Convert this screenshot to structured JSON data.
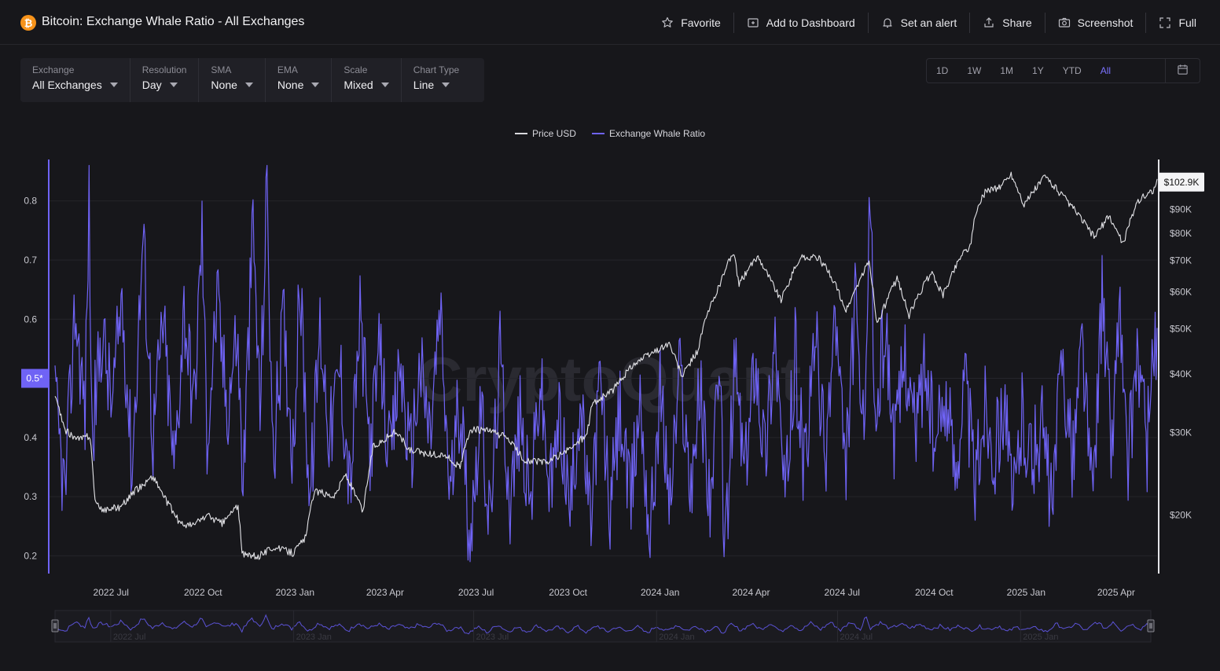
{
  "header": {
    "logo_glyph": "₿",
    "title": "Bitcoin: Exchange Whale Ratio - All Exchanges",
    "actions": [
      {
        "label": "Favorite",
        "icon": "star-icon"
      },
      {
        "label": "Add to Dashboard",
        "icon": "dashboard-add-icon"
      },
      {
        "label": "Set an alert",
        "icon": "bell-icon"
      },
      {
        "label": "Share",
        "icon": "share-icon"
      },
      {
        "label": "Screenshot",
        "icon": "camera-icon"
      },
      {
        "label": "Full",
        "icon": "fullscreen-icon"
      }
    ]
  },
  "filters": [
    {
      "label": "Exchange",
      "value": "All Exchanges"
    },
    {
      "label": "Resolution",
      "value": "Day"
    },
    {
      "label": "SMA",
      "value": "None"
    },
    {
      "label": "EMA",
      "value": "None"
    },
    {
      "label": "Scale",
      "value": "Mixed"
    },
    {
      "label": "Chart Type",
      "value": "Line"
    }
  ],
  "ranges": {
    "items": [
      "1D",
      "1W",
      "1M",
      "1Y",
      "YTD",
      "All"
    ],
    "active": "All",
    "calendar_icon": "calendar-icon"
  },
  "legend": [
    {
      "label": "Price USD",
      "color": "#d9d9de"
    },
    {
      "label": "Exchange Whale Ratio",
      "color": "#6f63f5"
    }
  ],
  "watermark": "CryptoQuant",
  "colors": {
    "background": "#17171b",
    "ratio": "#6f63f5",
    "price": "#e4e4e8",
    "grid": "#25252b",
    "accent": "#7b72ff",
    "bitcoin": "#f7931a"
  },
  "chart_data": {
    "type": "line",
    "title": "Bitcoin: Exchange Whale Ratio - All Exchanges",
    "x_range": [
      "2022-05-06",
      "2025-05-12"
    ],
    "x_ticks": [
      "2022 Jul",
      "2022 Oct",
      "2023 Jan",
      "2023 Apr",
      "2023 Jul",
      "2023 Oct",
      "2024 Jan",
      "2024 Apr",
      "2024 Jul",
      "2024 Oct",
      "2025 Jan",
      "2025 Apr"
    ],
    "y_left": {
      "ticks": [
        0.2,
        0.3,
        0.4,
        0.5,
        0.6,
        0.7,
        0.8
      ],
      "range": [
        0.17,
        0.87
      ],
      "current_marker": "0.5*"
    },
    "y_right": {
      "scale": "log",
      "ticks": [
        "$20K",
        "$30K",
        "$40K",
        "$50K",
        "$60K",
        "$70K",
        "$80K",
        "$90K"
      ],
      "range": [
        15000,
        115000
      ],
      "last_price_label": "$102.9K"
    },
    "grid": true,
    "legend_position": "top-center",
    "navigator_labels": [
      "2022 Jul",
      "2023 Jan",
      "2023 Jul",
      "2024 Jan",
      "2024 Jul",
      "2025 Jan"
    ],
    "series": [
      {
        "name": "Price USD",
        "axis": "right",
        "color": "#e4e4e8",
        "points": [
          [
            "2022-05-06",
            36000
          ],
          [
            "2022-05-15",
            30500
          ],
          [
            "2022-05-28",
            29000
          ],
          [
            "2022-06-10",
            29500
          ],
          [
            "2022-06-15",
            21500
          ],
          [
            "2022-06-20",
            20500
          ],
          [
            "2022-07-10",
            20800
          ],
          [
            "2022-07-25",
            22500
          ],
          [
            "2022-08-12",
            24200
          ],
          [
            "2022-08-25",
            21500
          ],
          [
            "2022-09-08",
            19200
          ],
          [
            "2022-09-20",
            19000
          ],
          [
            "2022-10-05",
            20000
          ],
          [
            "2022-10-20",
            19200
          ],
          [
            "2022-11-05",
            21000
          ],
          [
            "2022-11-09",
            16500
          ],
          [
            "2022-11-25",
            16300
          ],
          [
            "2022-12-10",
            17100
          ],
          [
            "2022-12-30",
            16600
          ],
          [
            "2023-01-12",
            18000
          ],
          [
            "2023-01-20",
            22500
          ],
          [
            "2023-02-10",
            22000
          ],
          [
            "2023-02-20",
            24500
          ],
          [
            "2023-03-10",
            20300
          ],
          [
            "2023-03-20",
            28000
          ],
          [
            "2023-04-12",
            30200
          ],
          [
            "2023-04-25",
            27500
          ],
          [
            "2023-05-15",
            27000
          ],
          [
            "2023-06-01",
            26800
          ],
          [
            "2023-06-15",
            25200
          ],
          [
            "2023-06-25",
            30500
          ],
          [
            "2023-07-15",
            30200
          ],
          [
            "2023-08-01",
            29300
          ],
          [
            "2023-08-18",
            26200
          ],
          [
            "2023-09-10",
            25900
          ],
          [
            "2023-10-01",
            27500
          ],
          [
            "2023-10-20",
            29700
          ],
          [
            "2023-10-25",
            34500
          ],
          [
            "2023-11-15",
            37000
          ],
          [
            "2023-12-05",
            42000
          ],
          [
            "2024-01-10",
            46500
          ],
          [
            "2024-01-23",
            39500
          ],
          [
            "2024-02-08",
            45000
          ],
          [
            "2024-02-15",
            52000
          ],
          [
            "2024-02-28",
            61000
          ],
          [
            "2024-03-14",
            73000
          ],
          [
            "2024-03-20",
            62500
          ],
          [
            "2024-04-08",
            71500
          ],
          [
            "2024-04-20",
            64000
          ],
          [
            "2024-05-01",
            57500
          ],
          [
            "2024-05-20",
            71000
          ],
          [
            "2024-06-07",
            71000
          ],
          [
            "2024-06-20",
            65000
          ],
          [
            "2024-07-05",
            54500
          ],
          [
            "2024-07-28",
            69500
          ],
          [
            "2024-08-05",
            51000
          ],
          [
            "2024-08-25",
            64000
          ],
          [
            "2024-09-06",
            53500
          ],
          [
            "2024-09-28",
            66000
          ],
          [
            "2024-10-10",
            59000
          ],
          [
            "2024-10-29",
            72500
          ],
          [
            "2024-11-06",
            75000
          ],
          [
            "2024-11-12",
            89000
          ],
          [
            "2024-11-22",
            99000
          ],
          [
            "2024-12-05",
            100000
          ],
          [
            "2024-12-17",
            107000
          ],
          [
            "2024-12-30",
            92000
          ],
          [
            "2025-01-20",
            106000
          ],
          [
            "2025-02-03",
            98000
          ],
          [
            "2025-02-25",
            86000
          ],
          [
            "2025-03-10",
            78500
          ],
          [
            "2025-03-25",
            87000
          ],
          [
            "2025-04-08",
            76000
          ],
          [
            "2025-04-22",
            93500
          ],
          [
            "2025-05-08",
            99000
          ],
          [
            "2025-05-12",
            102900
          ]
        ]
      },
      {
        "name": "Exchange Whale Ratio",
        "axis": "left",
        "color": "#6f63f5",
        "points": [
          [
            "2022-05-06",
            0.46
          ],
          [
            "2022-05-16",
            0.3
          ],
          [
            "2022-05-26",
            0.62
          ],
          [
            "2022-06-05",
            0.44
          ],
          [
            "2022-06-09",
            0.81
          ],
          [
            "2022-06-12",
            0.4
          ],
          [
            "2022-06-22",
            0.58
          ],
          [
            "2022-07-02",
            0.45
          ],
          [
            "2022-07-12",
            0.64
          ],
          [
            "2022-07-22",
            0.35
          ],
          [
            "2022-08-02",
            0.74
          ],
          [
            "2022-08-12",
            0.4
          ],
          [
            "2022-08-22",
            0.6
          ],
          [
            "2022-09-02",
            0.34
          ],
          [
            "2022-09-12",
            0.62
          ],
          [
            "2022-09-22",
            0.45
          ],
          [
            "2022-09-30",
            0.75
          ],
          [
            "2022-10-05",
            0.4
          ],
          [
            "2022-10-15",
            0.63
          ],
          [
            "2022-10-25",
            0.45
          ],
          [
            "2022-11-04",
            0.58
          ],
          [
            "2022-11-10",
            0.32
          ],
          [
            "2022-11-20",
            0.76
          ],
          [
            "2022-11-27",
            0.44
          ],
          [
            "2022-12-04",
            0.83
          ],
          [
            "2022-12-10",
            0.35
          ],
          [
            "2022-12-20",
            0.6
          ],
          [
            "2022-12-30",
            0.38
          ],
          [
            "2023-01-06",
            0.66
          ],
          [
            "2023-01-16",
            0.29
          ],
          [
            "2023-01-26",
            0.59
          ],
          [
            "2023-02-05",
            0.4
          ],
          [
            "2023-02-15",
            0.52
          ],
          [
            "2023-02-25",
            0.31
          ],
          [
            "2023-03-07",
            0.6
          ],
          [
            "2023-03-17",
            0.38
          ],
          [
            "2023-03-27",
            0.55
          ],
          [
            "2023-04-06",
            0.35
          ],
          [
            "2023-04-16",
            0.53
          ],
          [
            "2023-04-26",
            0.36
          ],
          [
            "2023-05-06",
            0.52
          ],
          [
            "2023-05-16",
            0.4
          ],
          [
            "2023-05-26",
            0.61
          ],
          [
            "2023-06-05",
            0.3
          ],
          [
            "2023-06-15",
            0.47
          ],
          [
            "2023-06-25",
            0.22
          ],
          [
            "2023-07-05",
            0.45
          ],
          [
            "2023-07-15",
            0.25
          ],
          [
            "2023-07-25",
            0.54
          ],
          [
            "2023-08-04",
            0.29
          ],
          [
            "2023-08-14",
            0.43
          ],
          [
            "2023-08-24",
            0.28
          ],
          [
            "2023-09-03",
            0.5
          ],
          [
            "2023-09-13",
            0.3
          ],
          [
            "2023-09-23",
            0.44
          ],
          [
            "2023-10-03",
            0.27
          ],
          [
            "2023-10-13",
            0.47
          ],
          [
            "2023-10-23",
            0.25
          ],
          [
            "2023-11-02",
            0.5
          ],
          [
            "2023-11-12",
            0.27
          ],
          [
            "2023-11-22",
            0.45
          ],
          [
            "2023-12-02",
            0.28
          ],
          [
            "2023-12-12",
            0.47
          ],
          [
            "2023-12-22",
            0.23
          ],
          [
            "2024-01-01",
            0.48
          ],
          [
            "2024-01-11",
            0.29
          ],
          [
            "2024-01-21",
            0.52
          ],
          [
            "2024-01-31",
            0.32
          ],
          [
            "2024-02-10",
            0.48
          ],
          [
            "2024-02-20",
            0.3
          ],
          [
            "2024-03-01",
            0.49
          ],
          [
            "2024-03-06",
            0.2
          ],
          [
            "2024-03-16",
            0.53
          ],
          [
            "2024-03-26",
            0.33
          ],
          [
            "2024-04-05",
            0.55
          ],
          [
            "2024-04-15",
            0.37
          ],
          [
            "2024-04-25",
            0.58
          ],
          [
            "2024-05-05",
            0.28
          ],
          [
            "2024-05-15",
            0.54
          ],
          [
            "2024-05-25",
            0.33
          ],
          [
            "2024-06-04",
            0.58
          ],
          [
            "2024-06-14",
            0.36
          ],
          [
            "2024-06-24",
            0.61
          ],
          [
            "2024-07-04",
            0.33
          ],
          [
            "2024-07-14",
            0.62
          ],
          [
            "2024-07-24",
            0.36
          ],
          [
            "2024-07-29",
            0.85
          ],
          [
            "2024-08-03",
            0.41
          ],
          [
            "2024-08-13",
            0.6
          ],
          [
            "2024-08-23",
            0.38
          ],
          [
            "2024-09-02",
            0.55
          ],
          [
            "2024-09-12",
            0.41
          ],
          [
            "2024-09-22",
            0.53
          ],
          [
            "2024-10-02",
            0.37
          ],
          [
            "2024-10-12",
            0.48
          ],
          [
            "2024-10-22",
            0.35
          ],
          [
            "2024-11-01",
            0.5
          ],
          [
            "2024-11-11",
            0.32
          ],
          [
            "2024-11-21",
            0.46
          ],
          [
            "2024-12-01",
            0.37
          ],
          [
            "2024-12-11",
            0.48
          ],
          [
            "2024-12-18",
            0.27
          ],
          [
            "2024-12-28",
            0.44
          ],
          [
            "2025-01-07",
            0.36
          ],
          [
            "2025-01-17",
            0.42
          ],
          [
            "2025-01-27",
            0.27
          ],
          [
            "2025-02-06",
            0.55
          ],
          [
            "2025-02-16",
            0.35
          ],
          [
            "2025-02-26",
            0.57
          ],
          [
            "2025-03-08",
            0.29
          ],
          [
            "2025-03-18",
            0.63
          ],
          [
            "2025-03-28",
            0.38
          ],
          [
            "2025-04-04",
            0.64
          ],
          [
            "2025-04-12",
            0.34
          ],
          [
            "2025-04-22",
            0.55
          ],
          [
            "2025-05-02",
            0.38
          ],
          [
            "2025-05-08",
            0.56
          ],
          [
            "2025-05-12",
            0.53
          ]
        ]
      }
    ]
  }
}
